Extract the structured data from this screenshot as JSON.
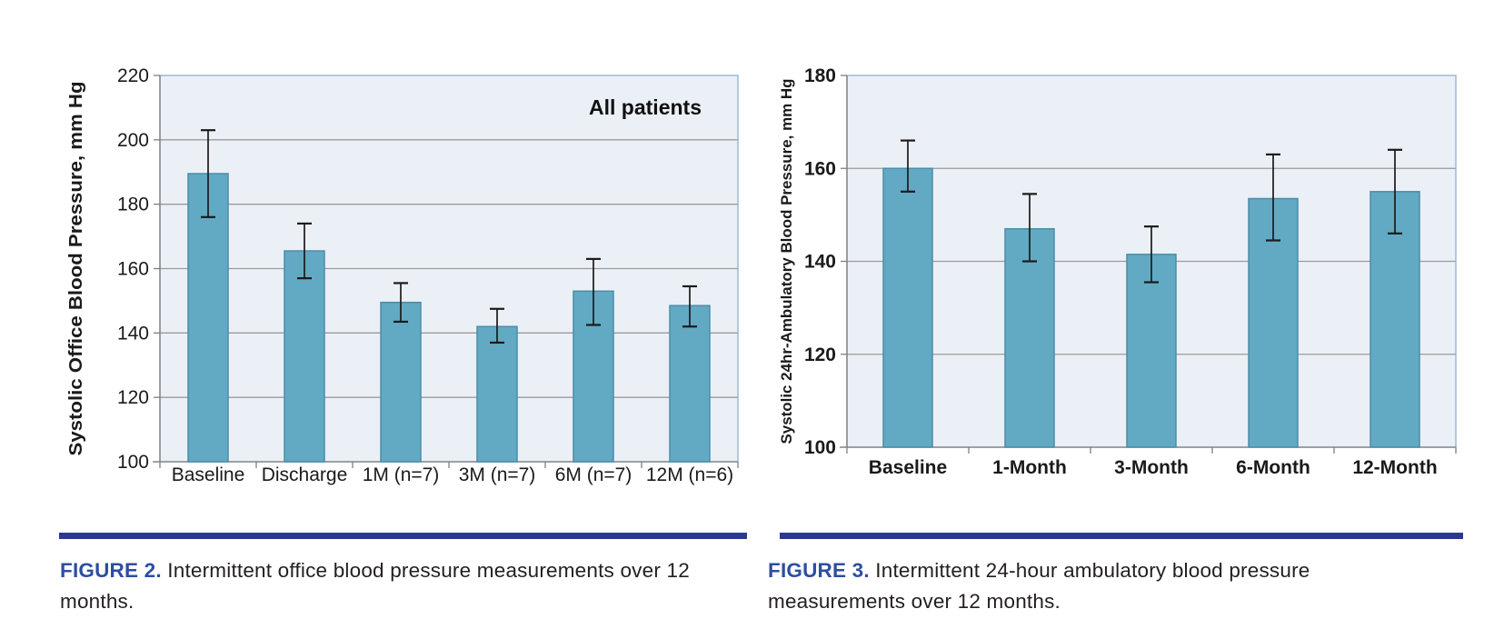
{
  "page": {
    "background": "#FFFFFF"
  },
  "colors": {
    "bar": "#62A9C3",
    "bar_border": "#4C8CA8",
    "plot_bg": "#EAF0F6",
    "plot_border": "#9FB9D6",
    "grid": "#9B9B9B",
    "axis": "#7F7F7F",
    "error": "#1A1A1A",
    "text": "#1A1A1A",
    "rule": "#2B3890",
    "figure_label": "#2C4EA2",
    "caption_text": "#231F20"
  },
  "figures": [
    {
      "id": "figure-2",
      "caption_label": "FIGURE 2.",
      "caption_text": "Intermittent office blood pressure measurements over 12 months."
    },
    {
      "id": "figure-3",
      "caption_label": "FIGURE 3.",
      "caption_text": "Intermittent 24-hour ambulatory blood pressure measurements over 12 months."
    }
  ],
  "chart_data": [
    {
      "type": "bar",
      "annotation": "All patients",
      "ylabel": "Systolic Office Blood Pressure, mm Hg",
      "xlabel": "",
      "ylim": [
        100,
        220
      ],
      "yticks": [
        100,
        120,
        140,
        160,
        180,
        200,
        220
      ],
      "grid": true,
      "legend_position": "none",
      "categories": [
        "Baseline",
        "Discharge",
        "1M (n=7)",
        "3M (n=7)",
        "6M (n=7)",
        "12M (n=6)"
      ],
      "values": [
        189.5,
        165.5,
        149.5,
        142,
        153,
        148.5
      ],
      "error_low": [
        176,
        157,
        143.5,
        137,
        142.5,
        142
      ],
      "error_high": [
        203,
        174,
        155.5,
        147.5,
        163,
        154.5
      ]
    },
    {
      "type": "bar",
      "annotation": "",
      "ylabel": "Systolic 24hr-Ambulatory Blood Pressure, mm Hg",
      "xlabel": "",
      "ylim": [
        100,
        180
      ],
      "yticks": [
        100,
        120,
        140,
        160,
        180
      ],
      "grid": true,
      "legend_position": "none",
      "categories": [
        "Baseline",
        "1-Month",
        "3-Month",
        "6-Month",
        "12-Month"
      ],
      "values": [
        160,
        147,
        141.5,
        153.5,
        155
      ],
      "error_low": [
        155,
        140,
        135.5,
        144.5,
        146
      ],
      "error_high": [
        166,
        154.5,
        147.5,
        163,
        164
      ]
    }
  ]
}
